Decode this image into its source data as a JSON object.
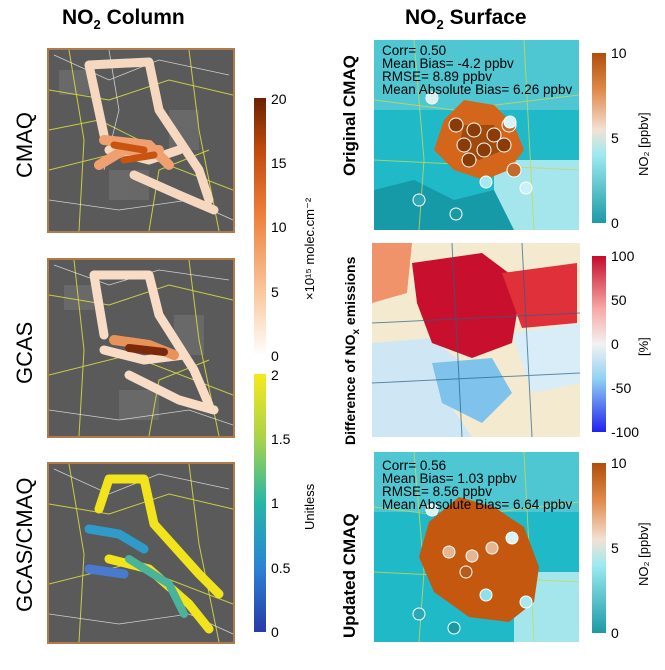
{
  "headers": {
    "left_prefix": "NO",
    "left_sub": "2",
    "left_suffix": " Column",
    "right_prefix": "NO",
    "right_sub": "2",
    "right_suffix": " Surface"
  },
  "left_rows": [
    "CMAQ",
    "GCAS",
    "GCAS/CMAQ"
  ],
  "right_rows": {
    "top": "Original CMAQ",
    "mid_prefix": "Difference of NO",
    "mid_sub": "x",
    "mid_suffix": " emissions",
    "bottom": "Updated CMAQ"
  },
  "colorbars": {
    "column": {
      "ticks": [
        "20",
        "15",
        "10",
        "5",
        "0"
      ],
      "label": "×10¹⁵ molec.cm⁻²",
      "min": 0,
      "max": 20,
      "colors": [
        "#ffffff",
        "#f9c79d",
        "#ee7f3a",
        "#c04a0d",
        "#6b2104"
      ]
    },
    "ratio": {
      "ticks": [
        "2",
        "1.5",
        "1",
        "0.5",
        "0"
      ],
      "label": "Unitless",
      "min": 0,
      "max": 2,
      "colors": [
        "#2a3aa6",
        "#2a83d6",
        "#27b6a6",
        "#a8d34a",
        "#f7e81c"
      ]
    },
    "surface_top": {
      "ticks": [
        "10",
        "5",
        "0"
      ],
      "label": "NO₂ [ppbv]",
      "min": 0,
      "max": 10,
      "colors": [
        "#1b9aa6",
        "#9eeaf0",
        "#f3e1d2",
        "#e08a4b",
        "#b04e0c"
      ]
    },
    "diff": {
      "ticks": [
        "100",
        "50",
        "0",
        "-50",
        "-100"
      ],
      "label": "[%]",
      "min": -100,
      "max": 100,
      "colors": [
        "#2222ee",
        "#8fd2f2",
        "#f2f2f2",
        "#f7a9a4",
        "#c40c2a"
      ]
    },
    "surface_bottom": {
      "ticks": [
        "10",
        "5",
        "0"
      ],
      "label": "NO₂ [ppbv]",
      "min": 0,
      "max": 10,
      "colors": [
        "#1b9aa6",
        "#9eeaf0",
        "#f3e1d2",
        "#e08a4b",
        "#b04e0c"
      ]
    }
  },
  "stats_original": [
    "Corr= 0.50",
    "Mean Bias= -4.2 ppbv",
    "RMSE= 8.89 ppbv",
    "Mean Absolute Bias= 6.26 ppbv"
  ],
  "stats_updated": [
    "Corr= 0.56",
    "Mean Bias= 1.03 ppbv",
    "RMSE= 8.56 ppbv",
    "Mean Absolute Bias= 6.64 ppbv"
  ],
  "chart_data": [
    {
      "type": "heatmap",
      "title": "NO₂ Column",
      "series_label": "CMAQ",
      "colorbar_label": "×10¹⁵ molec.cm⁻²",
      "range": [
        0,
        20
      ]
    },
    {
      "type": "heatmap",
      "title": "NO₂ Column",
      "series_label": "GCAS",
      "colorbar_label": "×10¹⁵ molec.cm⁻²",
      "range": [
        0,
        20
      ]
    },
    {
      "type": "heatmap",
      "title": "NO₂ Column",
      "series_label": "GCAS/CMAQ",
      "colorbar_label": "Unitless",
      "range": [
        0,
        2
      ]
    },
    {
      "type": "heatmap",
      "title": "NO₂ Surface",
      "series_label": "Original CMAQ",
      "colorbar_label": "NO₂ [ppbv]",
      "range": [
        0,
        10
      ],
      "annotations": [
        "Corr= 0.50",
        "Mean Bias= -4.2 ppbv",
        "RMSE= 8.89 ppbv",
        "Mean Absolute Bias= 6.26 ppbv"
      ]
    },
    {
      "type": "heatmap",
      "title": "NO₂ Surface",
      "series_label": "Difference of NOx emissions",
      "colorbar_label": "[%]",
      "range": [
        -100,
        100
      ]
    },
    {
      "type": "heatmap",
      "title": "NO₂ Surface",
      "series_label": "Updated CMAQ",
      "colorbar_label": "NO₂ [ppbv]",
      "range": [
        0,
        10
      ],
      "annotations": [
        "Corr= 0.56",
        "Mean Bias= 1.03 ppbv",
        "RMSE= 8.56 ppbv",
        "Mean Absolute Bias= 6.64 ppbv"
      ]
    }
  ]
}
